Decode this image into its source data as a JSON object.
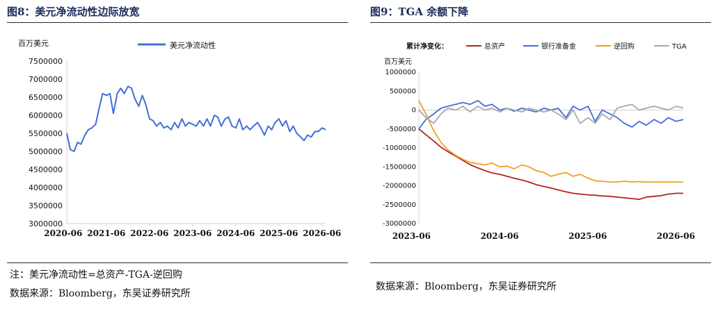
{
  "left": {
    "title": "图8：美元净流动性边际放宽",
    "note": "注：美元净流动性=总资产-TGA-逆回购",
    "source": "数据来源：Bloomberg，东吴证券研究所"
  },
  "right": {
    "title": "图9：TGA 余额下降",
    "legend_title": "累计净变化：",
    "source": "数据来源：Bloomberg，东吴证券研究所"
  },
  "chart_data": [
    {
      "type": "line",
      "ylabel": "百万美元",
      "ylim": [
        3000000,
        7500000
      ],
      "yticks": [
        3000000,
        3500000,
        4000000,
        4500000,
        5000000,
        5500000,
        6000000,
        6500000,
        7000000,
        7500000
      ],
      "xlim": [
        2020.5,
        2026.5
      ],
      "xticks": [
        "2020-06",
        "2021-06",
        "2022-06",
        "2023-06",
        "2024-06",
        "2025-06",
        "2026-06"
      ],
      "legend_position": "top-center",
      "grid": false,
      "series": [
        {
          "name": "美元净流动性",
          "color": "#3f6fd8",
          "x": [
            2020.5,
            2020.58,
            2020.67,
            2020.75,
            2020.83,
            2020.92,
            2021.0,
            2021.08,
            2021.17,
            2021.25,
            2021.33,
            2021.42,
            2021.5,
            2021.58,
            2021.67,
            2021.75,
            2021.83,
            2021.92,
            2022.0,
            2022.08,
            2022.17,
            2022.25,
            2022.33,
            2022.42,
            2022.5,
            2022.58,
            2022.67,
            2022.75,
            2022.83,
            2022.92,
            2023.0,
            2023.08,
            2023.17,
            2023.25,
            2023.33,
            2023.42,
            2023.5,
            2023.58,
            2023.67,
            2023.75,
            2023.83,
            2023.92,
            2024.0,
            2024.08,
            2024.17,
            2024.25,
            2024.33,
            2024.42,
            2024.5,
            2024.58,
            2024.67,
            2024.75,
            2024.83,
            2024.92,
            2025.0,
            2025.08,
            2025.17,
            2025.25,
            2025.33,
            2025.42,
            2025.5,
            2025.58,
            2025.67,
            2025.75,
            2025.83,
            2025.92,
            2026.0,
            2026.08,
            2026.17,
            2026.25,
            2026.33,
            2026.42,
            2026.5
          ],
          "values": [
            5500000,
            5050000,
            5000000,
            5250000,
            5200000,
            5450000,
            5600000,
            5650000,
            5750000,
            6200000,
            6600000,
            6550000,
            6600000,
            6050000,
            6600000,
            6750000,
            6600000,
            6800000,
            6750000,
            6450000,
            6250000,
            6550000,
            6300000,
            5900000,
            5850000,
            5700000,
            5800000,
            5650000,
            5700000,
            5600000,
            5800000,
            5650000,
            5900000,
            5700000,
            5800000,
            5750000,
            5700000,
            5850000,
            5700000,
            5900000,
            5700000,
            6000000,
            5950000,
            5700000,
            5900000,
            5950000,
            5700000,
            5650000,
            5900000,
            5600000,
            5700000,
            5600000,
            5700000,
            5800000,
            5650000,
            5450000,
            5700000,
            5600000,
            5800000,
            5900000,
            5700000,
            5850000,
            5550000,
            5700000,
            5500000,
            5400000,
            5300000,
            5450000,
            5400000,
            5550000,
            5550000,
            5650000,
            5600000
          ]
        }
      ]
    },
    {
      "type": "line",
      "ylabel": "百万美元",
      "ylim": [
        -3000000,
        1000000
      ],
      "yticks": [
        -3000000,
        -2500000,
        -2000000,
        -1500000,
        -1000000,
        -500000,
        0,
        500000,
        1000000
      ],
      "xlim": [
        2023.5,
        2026.5
      ],
      "xticks": [
        "2023-06",
        "2024-06",
        "2025-06",
        "2026-06"
      ],
      "legend_position": "top",
      "grid": false,
      "series": [
        {
          "name": "总资产",
          "color": "#b22222",
          "x": [
            2023.5,
            2023.58,
            2023.67,
            2023.75,
            2023.83,
            2023.92,
            2024.0,
            2024.08,
            2024.17,
            2024.25,
            2024.33,
            2024.42,
            2024.5,
            2024.58,
            2024.67,
            2024.75,
            2024.83,
            2024.92,
            2025.0,
            2025.08,
            2025.17,
            2025.25,
            2025.33,
            2025.42,
            2025.5,
            2025.58,
            2025.67,
            2025.75,
            2025.83,
            2025.92,
            2026.0,
            2026.08,
            2026.17,
            2026.25,
            2026.33,
            2026.42,
            2026.5
          ],
          "values": [
            -500000,
            -650000,
            -820000,
            -980000,
            -1100000,
            -1220000,
            -1330000,
            -1440000,
            -1530000,
            -1600000,
            -1660000,
            -1700000,
            -1750000,
            -1800000,
            -1850000,
            -1900000,
            -1970000,
            -2020000,
            -2060000,
            -2110000,
            -2160000,
            -2200000,
            -2220000,
            -2240000,
            -2250000,
            -2270000,
            -2280000,
            -2300000,
            -2320000,
            -2340000,
            -2360000,
            -2300000,
            -2280000,
            -2260000,
            -2220000,
            -2200000,
            -2200000
          ]
        },
        {
          "name": "银行准备金",
          "color": "#3f6fd8",
          "x": [
            2023.5,
            2023.58,
            2023.67,
            2023.75,
            2023.83,
            2023.92,
            2024.0,
            2024.08,
            2024.17,
            2024.25,
            2024.33,
            2024.42,
            2024.5,
            2024.58,
            2024.67,
            2024.75,
            2024.83,
            2024.92,
            2025.0,
            2025.08,
            2025.17,
            2025.25,
            2025.33,
            2025.42,
            2025.5,
            2025.58,
            2025.67,
            2025.75,
            2025.83,
            2025.92,
            2026.0,
            2026.08,
            2026.17,
            2026.25,
            2026.33,
            2026.42,
            2026.5
          ],
          "values": [
            -500000,
            -250000,
            -100000,
            50000,
            100000,
            150000,
            200000,
            150000,
            250000,
            100000,
            150000,
            0,
            50000,
            -30000,
            50000,
            0,
            -50000,
            50000,
            0,
            50000,
            -200000,
            100000,
            0,
            100000,
            -300000,
            0,
            -100000,
            -200000,
            -350000,
            -450000,
            -300000,
            -400000,
            -250000,
            -350000,
            -200000,
            -300000,
            -250000
          ]
        },
        {
          "name": "逆回购",
          "color": "#f0a020",
          "x": [
            2023.5,
            2023.58,
            2023.67,
            2023.75,
            2023.83,
            2023.92,
            2024.0,
            2024.08,
            2024.17,
            2024.25,
            2024.33,
            2024.42,
            2024.5,
            2024.58,
            2024.67,
            2024.75,
            2024.83,
            2024.92,
            2025.0,
            2025.08,
            2025.17,
            2025.25,
            2025.33,
            2025.42,
            2025.5,
            2025.58,
            2025.67,
            2025.75,
            2025.83,
            2025.92,
            2026.0,
            2026.08,
            2026.17,
            2026.25,
            2026.33,
            2026.42,
            2026.5
          ],
          "values": [
            250000,
            -100000,
            -550000,
            -850000,
            -1050000,
            -1200000,
            -1300000,
            -1380000,
            -1420000,
            -1450000,
            -1400000,
            -1500000,
            -1480000,
            -1550000,
            -1450000,
            -1500000,
            -1600000,
            -1650000,
            -1750000,
            -1700000,
            -1650000,
            -1750000,
            -1700000,
            -1800000,
            -1870000,
            -1880000,
            -1900000,
            -1900000,
            -1880000,
            -1900000,
            -1890000,
            -1900000,
            -1900000,
            -1900000,
            -1900000,
            -1900000,
            -1900000
          ]
        },
        {
          "name": "TGA",
          "color": "#a8a8a8",
          "x": [
            2023.5,
            2023.58,
            2023.67,
            2023.75,
            2023.83,
            2023.92,
            2024.0,
            2024.08,
            2024.17,
            2024.25,
            2024.33,
            2024.42,
            2024.5,
            2024.58,
            2024.67,
            2024.75,
            2024.83,
            2024.92,
            2025.0,
            2025.08,
            2025.17,
            2025.25,
            2025.33,
            2025.42,
            2025.5,
            2025.58,
            2025.67,
            2025.75,
            2025.83,
            2025.92,
            2026.0,
            2026.08,
            2026.17,
            2026.25,
            2026.33,
            2026.42,
            2026.5
          ],
          "values": [
            0,
            -200000,
            -350000,
            -100000,
            50000,
            0,
            100000,
            -50000,
            100000,
            0,
            50000,
            -50000,
            50000,
            0,
            -50000,
            50000,
            0,
            -50000,
            0,
            -100000,
            -250000,
            0,
            -350000,
            -200000,
            -350000,
            -100000,
            -250000,
            50000,
            100000,
            150000,
            0,
            50000,
            100000,
            50000,
            0,
            100000,
            50000
          ]
        }
      ]
    }
  ]
}
